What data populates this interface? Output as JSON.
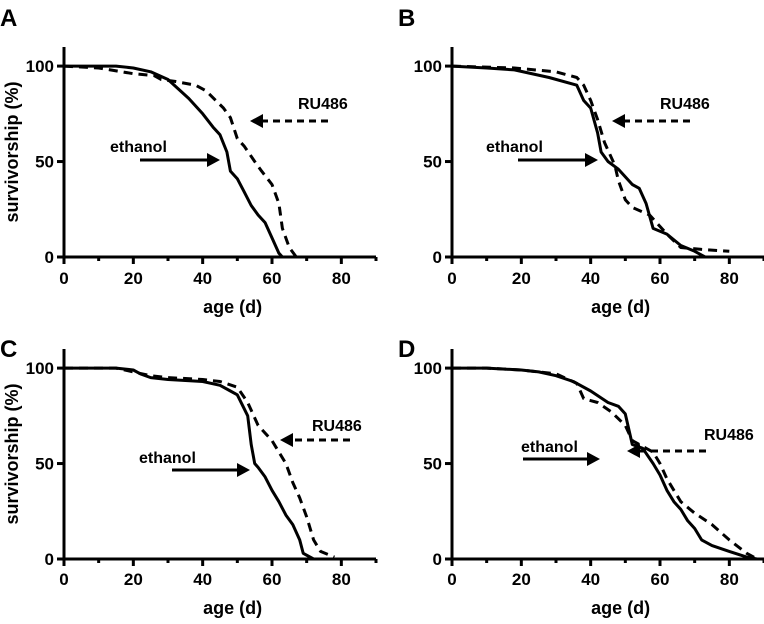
{
  "chart_data": [
    {
      "panel": "A",
      "type": "line",
      "title": "",
      "xlabel": "age (d)",
      "ylabel": "survivorship (%)",
      "xlim": [
        0,
        90
      ],
      "ylim": [
        0,
        110
      ],
      "xticks": [
        "0",
        "20",
        "40",
        "60",
        "80"
      ],
      "yticks": [
        "0",
        "50",
        "100"
      ],
      "series": [
        {
          "name": "ethanol",
          "style": "solid",
          "x": [
            0,
            10,
            15,
            20,
            25,
            30,
            33,
            36,
            40,
            43,
            45,
            47,
            48,
            50,
            52,
            54,
            56,
            58,
            60,
            62,
            63
          ],
          "y": [
            100,
            100,
            100,
            99,
            97,
            93,
            88,
            83,
            75,
            68,
            64,
            55,
            45,
            41,
            34,
            27,
            22,
            18,
            10,
            2,
            0
          ]
        },
        {
          "name": "RU486",
          "style": "dashed",
          "x": [
            0,
            10,
            20,
            26,
            28,
            32,
            38,
            41,
            46,
            48,
            50,
            52,
            55,
            57,
            60,
            62,
            63,
            65,
            67
          ],
          "y": [
            100,
            99,
            96,
            95,
            93,
            92,
            90,
            87,
            78,
            73,
            62,
            58,
            50,
            45,
            38,
            28,
            15,
            5,
            0
          ]
        }
      ],
      "annotations": {
        "solid_label": "ethanol",
        "dashed_label": "RU486"
      }
    },
    {
      "panel": "B",
      "type": "line",
      "title": "",
      "xlabel": "age (d)",
      "ylabel": "",
      "xlim": [
        0,
        90
      ],
      "ylim": [
        0,
        110
      ],
      "xticks": [
        "0",
        "20",
        "40",
        "60",
        "80"
      ],
      "yticks": [
        "0",
        "50",
        "100"
      ],
      "series": [
        {
          "name": "ethanol",
          "style": "solid",
          "x": [
            0,
            10,
            18,
            28,
            36,
            38,
            40,
            42,
            43,
            45,
            48,
            52,
            54,
            56,
            58,
            62,
            66,
            70,
            73
          ],
          "y": [
            100,
            99,
            98,
            94,
            90,
            82,
            78,
            65,
            55,
            50,
            46,
            38,
            36,
            28,
            15,
            12,
            6,
            3,
            0
          ]
        },
        {
          "name": "RU486",
          "style": "dashed",
          "x": [
            0,
            18,
            30,
            36,
            38,
            40,
            42,
            44,
            47,
            48,
            50,
            52,
            57,
            62,
            66,
            72,
            80
          ],
          "y": [
            100,
            99,
            97,
            94,
            90,
            82,
            72,
            60,
            48,
            40,
            30,
            26,
            22,
            12,
            5,
            4,
            3
          ]
        }
      ],
      "annotations": {
        "solid_label": "ethanol",
        "dashed_label": "RU486"
      }
    },
    {
      "panel": "C",
      "type": "line",
      "title": "",
      "xlabel": "age (d)",
      "ylabel": "survivorship (%)",
      "xlim": [
        0,
        90
      ],
      "ylim": [
        0,
        110
      ],
      "xticks": [
        "0",
        "20",
        "40",
        "60",
        "80"
      ],
      "yticks": [
        "0",
        "50",
        "100"
      ],
      "series": [
        {
          "name": "ethanol",
          "style": "solid",
          "x": [
            0,
            15,
            20,
            22,
            25,
            30,
            40,
            45,
            48,
            50,
            53,
            54,
            55,
            56,
            58,
            60,
            62,
            64,
            66,
            68,
            69,
            72
          ],
          "y": [
            100,
            100,
            99,
            97,
            95,
            94,
            93,
            91,
            88,
            86,
            75,
            60,
            50,
            48,
            43,
            36,
            30,
            23,
            18,
            10,
            3,
            0
          ]
        },
        {
          "name": "RU486",
          "style": "dashed",
          "x": [
            0,
            15,
            20,
            25,
            30,
            40,
            45,
            50,
            53,
            56,
            60,
            62,
            64,
            66,
            68,
            70,
            72,
            74,
            78
          ],
          "y": [
            100,
            100,
            98,
            96,
            95,
            94,
            93,
            90,
            82,
            70,
            62,
            56,
            50,
            40,
            32,
            22,
            10,
            4,
            1
          ]
        }
      ],
      "annotations": {
        "solid_label": "ethanol",
        "dashed_label": "RU486"
      }
    },
    {
      "panel": "D",
      "type": "line",
      "title": "",
      "xlabel": "age (d)",
      "ylabel": "",
      "xlim": [
        0,
        90
      ],
      "ylim": [
        0,
        110
      ],
      "xticks": [
        "0",
        "20",
        "40",
        "60",
        "80"
      ],
      "yticks": [
        "0",
        "50",
        "100"
      ],
      "series": [
        {
          "name": "ethanol",
          "style": "solid",
          "x": [
            0,
            10,
            20,
            25,
            30,
            35,
            40,
            45,
            48,
            50,
            52,
            55,
            58,
            60,
            62,
            64,
            66,
            68,
            70,
            72,
            75,
            80,
            85,
            88
          ],
          "y": [
            100,
            100,
            99,
            98,
            96,
            93,
            88,
            82,
            80,
            76,
            60,
            58,
            50,
            44,
            36,
            30,
            26,
            20,
            16,
            10,
            7,
            4,
            1,
            0
          ]
        },
        {
          "name": "RU486",
          "style": "dashed",
          "x": [
            0,
            10,
            20,
            30,
            36,
            38,
            42,
            46,
            50,
            52,
            56,
            58,
            60,
            62,
            66,
            70,
            75,
            80,
            85,
            88
          ],
          "y": [
            100,
            100,
            99,
            97,
            92,
            84,
            82,
            77,
            70,
            62,
            58,
            56,
            50,
            42,
            30,
            24,
            18,
            10,
            3,
            0
          ]
        }
      ],
      "annotations": {
        "solid_label": "ethanol",
        "dashed_label": "RU486"
      }
    }
  ]
}
